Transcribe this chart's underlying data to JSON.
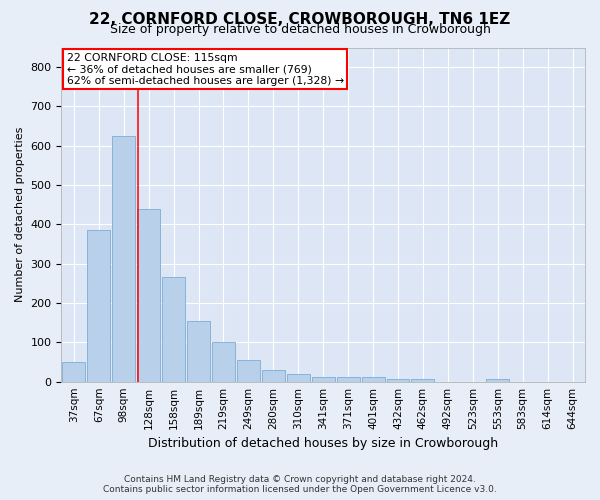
{
  "title": "22, CORNFORD CLOSE, CROWBOROUGH, TN6 1EZ",
  "subtitle": "Size of property relative to detached houses in Crowborough",
  "xlabel": "Distribution of detached houses by size in Crowborough",
  "ylabel": "Number of detached properties",
  "categories": [
    "37sqm",
    "67sqm",
    "98sqm",
    "128sqm",
    "158sqm",
    "189sqm",
    "219sqm",
    "249sqm",
    "280sqm",
    "310sqm",
    "341sqm",
    "371sqm",
    "401sqm",
    "432sqm",
    "462sqm",
    "492sqm",
    "523sqm",
    "553sqm",
    "583sqm",
    "614sqm",
    "644sqm"
  ],
  "values": [
    50,
    385,
    625,
    440,
    265,
    155,
    100,
    55,
    30,
    20,
    13,
    13,
    13,
    8,
    8,
    0,
    0,
    8,
    0,
    0,
    0
  ],
  "bar_color": "#b8d0ea",
  "bar_edge_color": "#7aadd4",
  "marker_label": "22 CORNFORD CLOSE: 115sqm",
  "annotation_line1": "← 36% of detached houses are smaller (769)",
  "annotation_line2": "62% of semi-detached houses are larger (1,328) →",
  "ylim": [
    0,
    850
  ],
  "yticks": [
    0,
    100,
    200,
    300,
    400,
    500,
    600,
    700,
    800
  ],
  "bg_color": "#e8eef8",
  "plot_bg_color": "#dde6f5",
  "grid_color": "#ffffff",
  "footer_line1": "Contains HM Land Registry data © Crown copyright and database right 2024.",
  "footer_line2": "Contains public sector information licensed under the Open Government Licence v3.0.",
  "title_fontsize": 11,
  "subtitle_fontsize": 9,
  "ylabel_fontsize": 8,
  "xlabel_fontsize": 9
}
